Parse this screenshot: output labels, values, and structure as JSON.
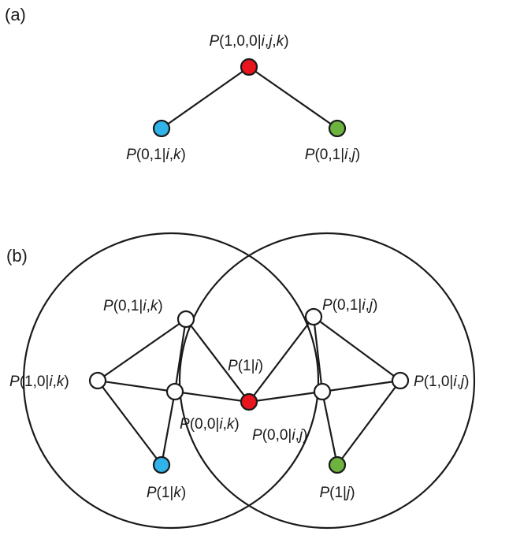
{
  "panels": {
    "a": {
      "label": "(a)"
    },
    "b": {
      "label": "(b)"
    }
  },
  "colors": {
    "red": "#e8141e",
    "blue": "#2fb3e8",
    "green": "#6db33f",
    "white": "#ffffff"
  },
  "a": {
    "nodes": [
      {
        "id": "a-top",
        "color": "red"
      },
      {
        "id": "a-left",
        "color": "blue"
      },
      {
        "id": "a-right",
        "color": "green"
      }
    ],
    "edges": [
      [
        "a-top",
        "a-left"
      ],
      [
        "a-top",
        "a-right"
      ]
    ],
    "labels": [
      {
        "for": "a-top",
        "parts": [
          [
            "P",
            true
          ],
          [
            "(1,0,0|",
            false
          ],
          [
            "i",
            true
          ],
          [
            ",",
            false
          ],
          [
            "j",
            true
          ],
          [
            ",",
            false
          ],
          [
            "k",
            true
          ],
          [
            ")",
            false
          ]
        ]
      },
      {
        "for": "a-left",
        "parts": [
          [
            "P",
            true
          ],
          [
            "(0,1|",
            false
          ],
          [
            "i",
            true
          ],
          [
            ",",
            false
          ],
          [
            "k",
            true
          ],
          [
            ")",
            false
          ]
        ]
      },
      {
        "for": "a-right",
        "parts": [
          [
            "P",
            true
          ],
          [
            "(0,1|",
            false
          ],
          [
            "i",
            true
          ],
          [
            ",",
            false
          ],
          [
            "j",
            true
          ],
          [
            ")",
            false
          ]
        ]
      }
    ]
  },
  "b": {
    "nodes": [
      {
        "id": "b-01ik",
        "color": "white"
      },
      {
        "id": "b-10ik",
        "color": "white"
      },
      {
        "id": "b-00ik",
        "color": "white"
      },
      {
        "id": "b-1k",
        "color": "blue"
      },
      {
        "id": "b-1i",
        "color": "red"
      },
      {
        "id": "b-01ij",
        "color": "white"
      },
      {
        "id": "b-00ij",
        "color": "white"
      },
      {
        "id": "b-10ij",
        "color": "white"
      },
      {
        "id": "b-1j",
        "color": "green"
      }
    ],
    "edges": [
      [
        "b-10ik",
        "b-01ik"
      ],
      [
        "b-10ik",
        "b-00ik"
      ],
      [
        "b-10ik",
        "b-1k"
      ],
      [
        "b-01ik",
        "b-00ik"
      ],
      [
        "b-01ik",
        "b-1i"
      ],
      [
        "b-00ik",
        "b-1k"
      ],
      [
        "b-00ik",
        "b-1i"
      ],
      [
        "b-10ij",
        "b-01ij"
      ],
      [
        "b-10ij",
        "b-00ij"
      ],
      [
        "b-10ij",
        "b-1j"
      ],
      [
        "b-01ij",
        "b-00ij"
      ],
      [
        "b-01ij",
        "b-1i"
      ],
      [
        "b-00ij",
        "b-1j"
      ],
      [
        "b-00ij",
        "b-1i"
      ]
    ],
    "labels": [
      {
        "for": "b-01ik",
        "parts": [
          [
            "P",
            true
          ],
          [
            "(0,1|",
            false
          ],
          [
            "i",
            true
          ],
          [
            ",",
            false
          ],
          [
            "k",
            true
          ],
          [
            ")",
            false
          ]
        ]
      },
      {
        "for": "b-10ik",
        "parts": [
          [
            "P",
            true
          ],
          [
            "(1,0|",
            false
          ],
          [
            "i",
            true
          ],
          [
            ",",
            false
          ],
          [
            "k",
            true
          ],
          [
            ")",
            false
          ]
        ]
      },
      {
        "for": "b-00ik",
        "parts": [
          [
            "P",
            true
          ],
          [
            "(0,0|",
            false
          ],
          [
            "i",
            true
          ],
          [
            ",",
            false
          ],
          [
            "k",
            true
          ],
          [
            ")",
            false
          ]
        ]
      },
      {
        "for": "b-1k",
        "parts": [
          [
            "P",
            true
          ],
          [
            "(1|",
            false
          ],
          [
            "k",
            true
          ],
          [
            ")",
            false
          ]
        ]
      },
      {
        "for": "b-1i",
        "parts": [
          [
            "P",
            true
          ],
          [
            "(1|",
            false
          ],
          [
            "i",
            true
          ],
          [
            ")",
            false
          ]
        ]
      },
      {
        "for": "b-01ij",
        "parts": [
          [
            "P",
            true
          ],
          [
            "(0,1|",
            false
          ],
          [
            "i",
            true
          ],
          [
            ",",
            false
          ],
          [
            "j",
            true
          ],
          [
            ")",
            false
          ]
        ]
      },
      {
        "for": "b-00ij",
        "parts": [
          [
            "P",
            true
          ],
          [
            "(0,0|",
            false
          ],
          [
            "i",
            true
          ],
          [
            ",",
            false
          ],
          [
            "j",
            true
          ],
          [
            ")",
            false
          ]
        ]
      },
      {
        "for": "b-10ij",
        "parts": [
          [
            "P",
            true
          ],
          [
            "(1,0|",
            false
          ],
          [
            "i",
            true
          ],
          [
            ",",
            false
          ],
          [
            "j",
            true
          ],
          [
            ")",
            false
          ]
        ]
      },
      {
        "for": "b-1j",
        "parts": [
          [
            "P",
            true
          ],
          [
            "(1|",
            false
          ],
          [
            "j",
            true
          ],
          [
            ")",
            false
          ]
        ]
      }
    ]
  }
}
